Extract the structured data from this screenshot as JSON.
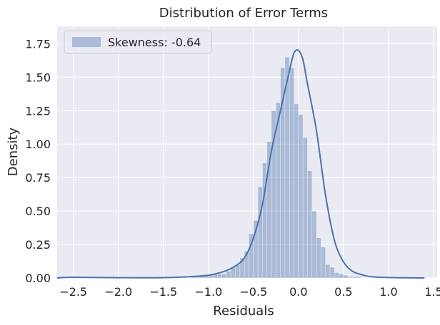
{
  "chart_data": {
    "type": "bar",
    "title": "Distribution of Error Terms",
    "xlabel": "Residuals",
    "ylabel": "Density",
    "xlim": [
      -2.68,
      1.54
    ],
    "ylim": [
      0,
      1.88
    ],
    "grid": true,
    "legend": {
      "label": "Skewness: -0.64",
      "placement": "top-left"
    },
    "x_ticks": [
      -2.5,
      -2.0,
      -1.5,
      -1.0,
      -0.5,
      0.0,
      0.5,
      1.0,
      1.5
    ],
    "x_tick_labels": [
      "−2.5",
      "−2.0",
      "−1.5",
      "−1.0",
      "−0.5",
      "0.0",
      "0.5",
      "1.0",
      "1.5"
    ],
    "y_ticks": [
      0.0,
      0.25,
      0.5,
      0.75,
      1.0,
      1.25,
      1.5,
      1.75
    ],
    "y_tick_labels": [
      "0.00",
      "0.25",
      "0.50",
      "0.75",
      "1.00",
      "1.25",
      "1.50",
      "1.75"
    ],
    "histogram": {
      "bin_edges": [
        -1.2,
        -1.1,
        -1.0,
        -0.95,
        -0.9,
        -0.85,
        -0.8,
        -0.75,
        -0.7,
        -0.65,
        -0.6,
        -0.55,
        -0.5,
        -0.45,
        -0.4,
        -0.35,
        -0.3,
        -0.25,
        -0.2,
        -0.15,
        -0.1,
        -0.05,
        0.0,
        0.05,
        0.1,
        0.15,
        0.2,
        0.25,
        0.3,
        0.35,
        0.4,
        0.45,
        0.5,
        0.55,
        0.6,
        0.65,
        0.7,
        0.75
      ],
      "densities": [
        0.01,
        0.02,
        0.02,
        0.03,
        0.03,
        0.03,
        0.05,
        0.08,
        0.1,
        0.15,
        0.2,
        0.33,
        0.43,
        0.68,
        0.86,
        1.02,
        1.25,
        1.31,
        1.57,
        1.65,
        1.57,
        1.3,
        1.22,
        1.05,
        0.8,
        0.5,
        0.3,
        0.23,
        0.1,
        0.08,
        0.04,
        0.03,
        0.02,
        0.01,
        0.01,
        0.01,
        0.0
      ],
      "isolated_bins": [
        {
          "x0": -2.55,
          "x1": -2.45,
          "density": 0.01
        }
      ]
    },
    "kde": {
      "x": [
        -2.68,
        -2.5,
        -2.0,
        -1.6,
        -1.4,
        -1.2,
        -1.0,
        -0.9,
        -0.8,
        -0.7,
        -0.6,
        -0.5,
        -0.4,
        -0.3,
        -0.2,
        -0.1,
        -0.05,
        0.0,
        0.05,
        0.1,
        0.2,
        0.3,
        0.4,
        0.5,
        0.6,
        0.7,
        0.8,
        1.0,
        1.2,
        1.4
      ],
      "y": [
        0.0,
        0.005,
        0.002,
        0.001,
        0.004,
        0.01,
        0.02,
        0.035,
        0.055,
        0.09,
        0.15,
        0.3,
        0.55,
        0.95,
        1.25,
        1.55,
        1.68,
        1.7,
        1.63,
        1.45,
        1.1,
        0.62,
        0.28,
        0.12,
        0.05,
        0.025,
        0.01,
        0.003,
        0.001,
        0.0
      ]
    },
    "colors": {
      "bar_fill": "#4c72b0",
      "kde_line": "#4c72b0",
      "plot_background": "#eaeaf2",
      "grid": "#ffffff",
      "text": "#262626"
    }
  }
}
